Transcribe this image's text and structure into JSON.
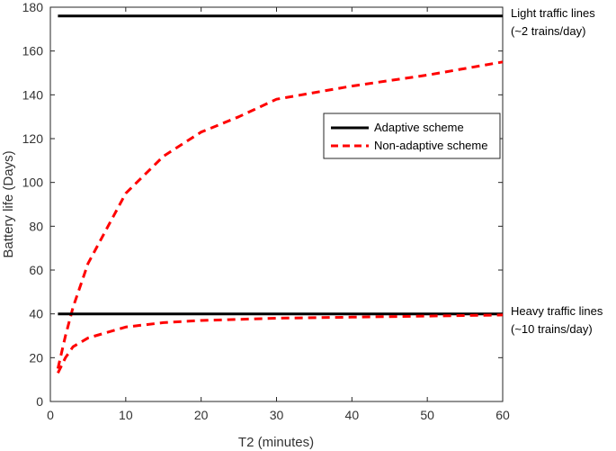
{
  "chart_data": {
    "type": "line",
    "xlabel": "T2 (minutes)",
    "ylabel": "Battery life (Days)",
    "xlim": [
      0,
      60
    ],
    "ylim": [
      0,
      180
    ],
    "xticks": [
      0,
      10,
      20,
      30,
      40,
      50,
      60
    ],
    "yticks": [
      0,
      20,
      40,
      60,
      80,
      100,
      120,
      140,
      160,
      180
    ],
    "grid": false,
    "legend_position": "center-right",
    "series": [
      {
        "name": "Adaptive scheme",
        "style": "solid",
        "color": "#000000",
        "group": "Light traffic lines",
        "x": [
          1,
          60
        ],
        "y": [
          176,
          176
        ]
      },
      {
        "name": "Non-adaptive scheme",
        "style": "dashed",
        "color": "#ff0000",
        "group": "Light traffic lines",
        "x": [
          1,
          2,
          3,
          5,
          10,
          15,
          20,
          25,
          30,
          40,
          50,
          60
        ],
        "y": [
          15,
          30,
          43,
          63,
          95,
          112,
          123,
          130,
          138,
          144,
          149,
          155
        ]
      },
      {
        "name": "Adaptive scheme",
        "style": "solid",
        "color": "#000000",
        "group": "Heavy traffic lines",
        "x": [
          1,
          60
        ],
        "y": [
          40,
          40
        ]
      },
      {
        "name": "Non-adaptive scheme",
        "style": "dashed",
        "color": "#ff0000",
        "group": "Heavy traffic lines",
        "x": [
          1,
          2,
          3,
          5,
          10,
          15,
          20,
          30,
          40,
          50,
          60
        ],
        "y": [
          13,
          20,
          25,
          29,
          34,
          36,
          37,
          38,
          38.5,
          39,
          39.5
        ]
      }
    ],
    "annotations": [
      {
        "lines": [
          "Light traffic lines",
          "(~2 trains/day)"
        ],
        "y": 176
      },
      {
        "lines": [
          "Heavy traffic lines",
          "(~10 trains/day)"
        ],
        "y": 40
      }
    ],
    "legend": [
      {
        "label": "Adaptive scheme",
        "style": "solid",
        "color": "#000000"
      },
      {
        "label": "Non-adaptive scheme",
        "style": "dashed",
        "color": "#ff0000"
      }
    ]
  }
}
